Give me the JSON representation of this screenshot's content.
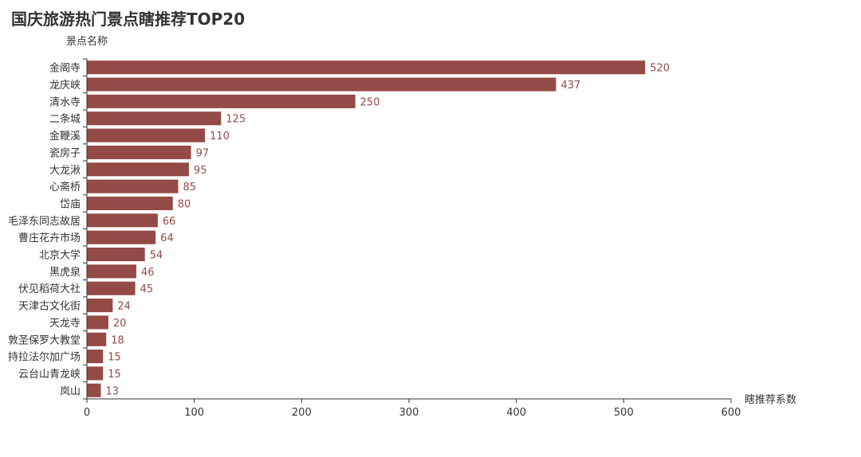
{
  "chart_data": {
    "type": "bar",
    "orientation": "horizontal",
    "title": "国庆旅游热门景点瞎推荐TOP20",
    "ylabel": "景点名称",
    "xlabel": "瞎推荐系数",
    "xlim": [
      0,
      600
    ],
    "xticks": [
      "0",
      "100",
      "200",
      "300",
      "400",
      "500",
      "600"
    ],
    "grid": false,
    "bar_color": "#944a46",
    "categories": [
      "金阁寺",
      "龙庆峡",
      "清水寺",
      "二条城",
      "金鞭溪",
      "瓷房子",
      "大龙湫",
      "心斋桥",
      "岱庙",
      "毛泽东同志故居",
      "曹庄花卉市场",
      "北京大学",
      "黑虎泉",
      "伏见稻荷大社",
      "天津古文化街",
      "天龙寺",
      "敦圣保罗大教堂",
      "持拉法尔加广场",
      "云台山青龙峡",
      "岚山"
    ],
    "values": [
      520,
      437,
      250,
      125,
      110,
      97,
      95,
      85,
      80,
      66,
      64,
      54,
      46,
      45,
      24,
      20,
      18,
      15,
      15,
      13
    ]
  }
}
